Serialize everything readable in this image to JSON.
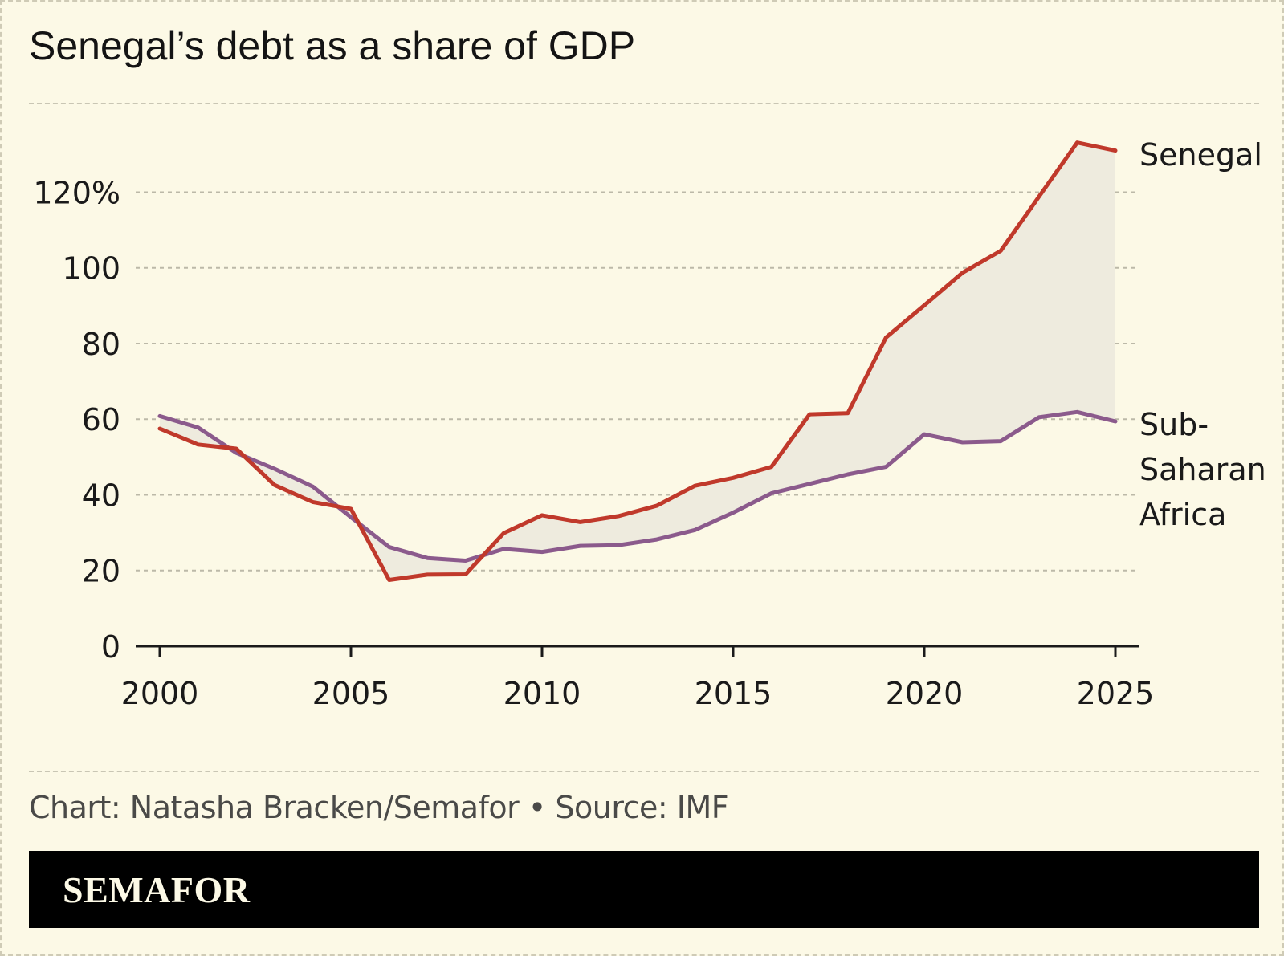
{
  "header": {
    "title": "Senegal’s debt as a share of GDP"
  },
  "chart_data": {
    "type": "line",
    "title": "Senegal’s debt as a share of GDP",
    "xlabel": "",
    "ylabel": "",
    "x": [
      2000,
      2001,
      2002,
      2003,
      2004,
      2005,
      2006,
      2007,
      2008,
      2009,
      2010,
      2011,
      2012,
      2013,
      2014,
      2015,
      2016,
      2017,
      2018,
      2019,
      2020,
      2021,
      2022,
      2023,
      2024,
      2025
    ],
    "xlim": [
      2000,
      2025
    ],
    "ylim": [
      0,
      130
    ],
    "x_ticks": [
      2000,
      2005,
      2010,
      2015,
      2020,
      2025
    ],
    "x_tick_labels": [
      "2000",
      "2005",
      "2010",
      "2015",
      "2020",
      "2025"
    ],
    "y_ticks": [
      0,
      20,
      40,
      60,
      80,
      100,
      120
    ],
    "y_tick_labels": [
      "0",
      "20",
      "40",
      "60",
      "80",
      "100",
      "120%"
    ],
    "grid": true,
    "shaded_between_series": true,
    "series": [
      {
        "name": "Senegal",
        "color": "#c0392b",
        "label_lines": [
          "Senegal"
        ],
        "values": [
          57.5,
          53.3,
          52.2,
          42.6,
          38.1,
          36.3,
          17.5,
          18.9,
          19.0,
          29.9,
          34.6,
          32.8,
          34.4,
          37.1,
          42.4,
          44.5,
          47.4,
          61.3,
          61.6,
          81.6,
          90.1,
          98.7,
          104.5,
          118.8,
          133.1,
          131.0
        ]
      },
      {
        "name": "Sub-Saharan Africa",
        "color": "#8b5a8c",
        "label_lines": [
          "Sub-",
          "Saharan",
          "Africa"
        ],
        "values": [
          60.8,
          57.8,
          51.1,
          46.9,
          42.2,
          34.1,
          26.2,
          23.3,
          22.6,
          25.7,
          24.9,
          26.5,
          26.7,
          28.2,
          30.7,
          35.3,
          40.4,
          42.9,
          45.4,
          47.4,
          56.0,
          53.9,
          54.2,
          60.5,
          61.9,
          59.4
        ]
      }
    ]
  },
  "footer": {
    "source": "Chart: Natasha Bracken/Semafor • Source: IMF",
    "brand": "SEMAFOR"
  },
  "colors": {
    "background": "#fcf9e6",
    "fill_between": "#eeebde",
    "gridline": "#bcb9a8",
    "footer_bar": "#000000"
  }
}
